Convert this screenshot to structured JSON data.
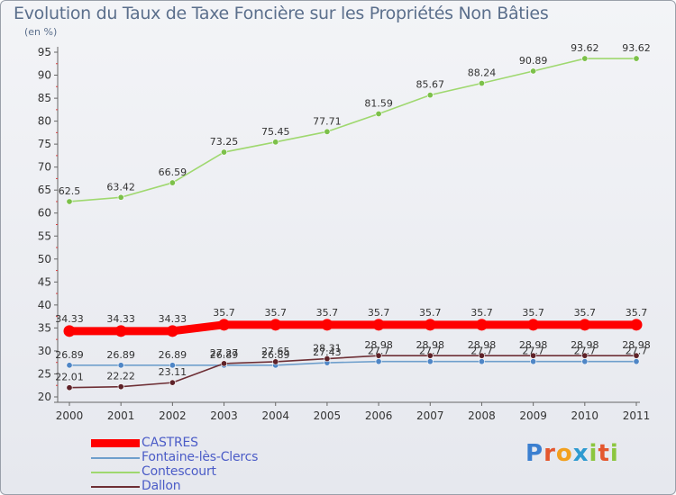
{
  "header": {
    "title": "Evolution du Taux de Taxe Foncière sur les Propriétés Non Bâties",
    "unit": "(en %)"
  },
  "brand": {
    "letters": [
      "P",
      "r",
      "o",
      "x",
      "i",
      "t",
      "i"
    ],
    "colors": [
      "#3b7fd0",
      "#e4572e",
      "#f2a01e",
      "#2e9ad0",
      "#8cc63f",
      "#e4572e",
      "#8cc63f"
    ]
  },
  "chart_data": {
    "type": "line",
    "x": [
      "2000",
      "2001",
      "2002",
      "2003",
      "2004",
      "2005",
      "2006",
      "2007",
      "2008",
      "2009",
      "2010",
      "2011"
    ],
    "ylim": [
      20,
      95
    ],
    "yticks": [
      20,
      25,
      30,
      35,
      40,
      45,
      50,
      55,
      60,
      65,
      70,
      75,
      80,
      85,
      90,
      95
    ],
    "grid": false,
    "legend_position": "bottom-left",
    "series": [
      {
        "name": "Contescourt",
        "color": "#9fd86f",
        "marker": "#7cc04a",
        "values": [
          62.5,
          63.42,
          66.59,
          73.25,
          75.45,
          77.71,
          81.59,
          85.67,
          88.24,
          90.89,
          93.62,
          93.62
        ],
        "labels": [
          "62.5",
          "63.42",
          "66.59",
          "73.25",
          "75.45",
          "77.71",
          "81.59",
          "85.67",
          "88.24",
          "90.89",
          "93.62",
          "93.62"
        ]
      },
      {
        "name": "Fontaine-lès-Clercs",
        "color": "#6f9fcc",
        "marker": "#4f86c6",
        "values": [
          26.89,
          26.89,
          26.89,
          26.89,
          26.89,
          27.43,
          27.7,
          27.7,
          27.7,
          27.7,
          27.7,
          27.7
        ],
        "labels": [
          "26.89",
          "26.89",
          "26.89",
          "26.89",
          "26.89",
          "27.43",
          "27.7",
          "27.7",
          "27.7",
          "27.7",
          "27.7",
          "27.7"
        ]
      },
      {
        "name": "Dallon",
        "color": "#6e2f35",
        "marker": "#5e2228",
        "values": [
          22.01,
          22.22,
          23.11,
          27.27,
          27.65,
          28.31,
          28.98,
          28.98,
          28.98,
          28.98,
          28.98,
          28.98
        ],
        "labels": [
          "22.01",
          "22.22",
          "23.11",
          "27.27",
          "27.65",
          "28.31",
          "28.98",
          "28.98",
          "28.98",
          "28.98",
          "28.98",
          "28.98"
        ]
      },
      {
        "name": "CASTRES",
        "color": "#ff0000",
        "marker": "#ff0000",
        "values": [
          34.33,
          34.33,
          34.33,
          35.7,
          35.7,
          35.7,
          35.7,
          35.7,
          35.7,
          35.7,
          35.7,
          35.7
        ],
        "labels": [
          "34.33",
          "34.33",
          "34.33",
          "35.7",
          "35.7",
          "35.7",
          "35.7",
          "35.7",
          "35.7",
          "35.7",
          "35.7",
          "35.7"
        ]
      }
    ],
    "legend_order": [
      "CASTRES",
      "Fontaine-lès-Clercs",
      "Contescourt",
      "Dallon"
    ]
  }
}
